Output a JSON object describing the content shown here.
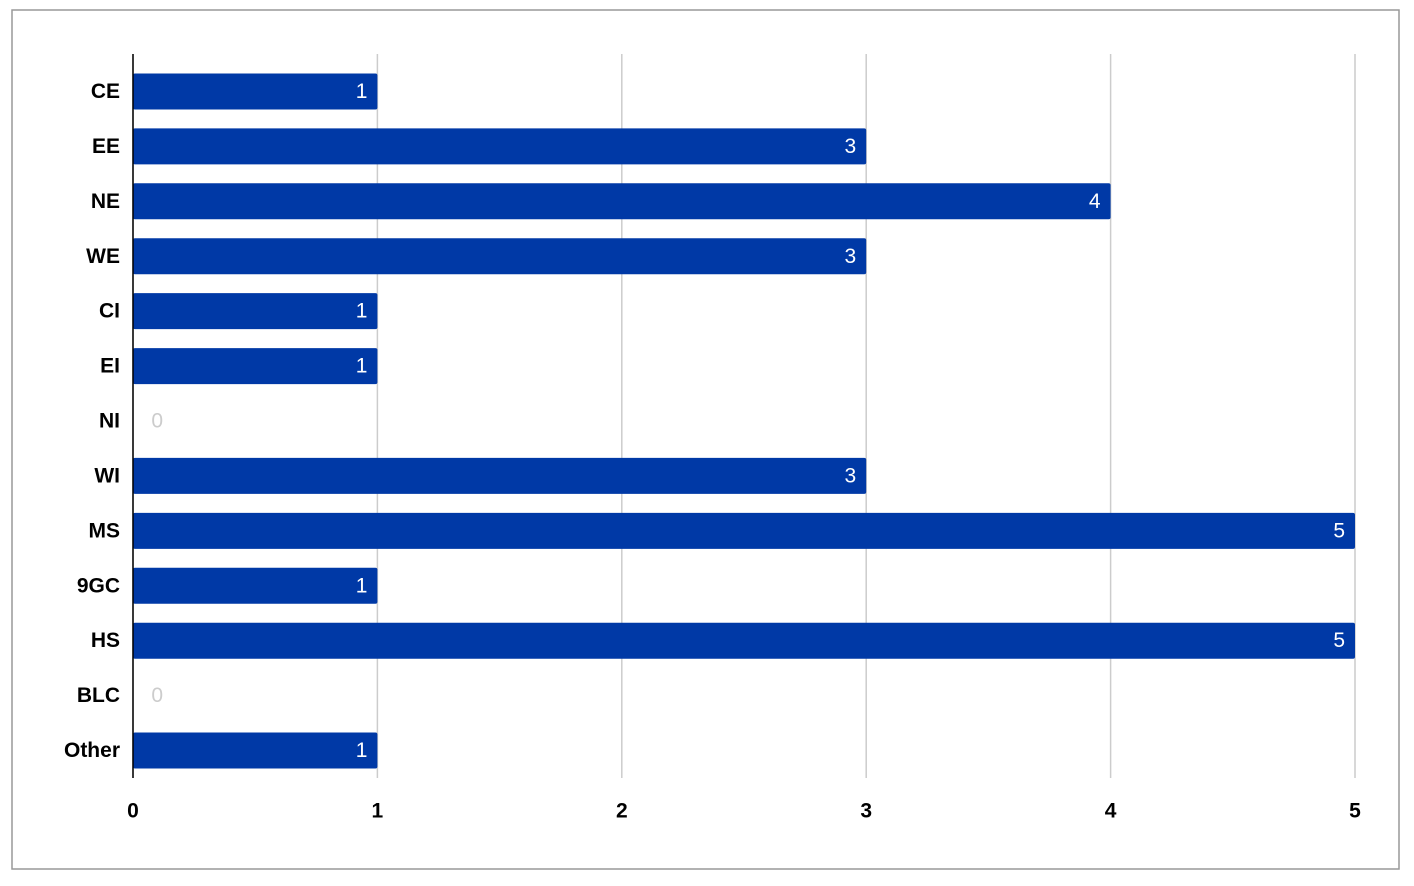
{
  "chart_data": {
    "type": "bar",
    "orientation": "horizontal",
    "categories": [
      "CE",
      "EE",
      "NE",
      "WE",
      "CI",
      "EI",
      "NI",
      "WI",
      "MS",
      "9GC",
      "HS",
      "BLC",
      "Other"
    ],
    "values": [
      1,
      3,
      4,
      3,
      1,
      1,
      0,
      3,
      5,
      1,
      5,
      0,
      1
    ],
    "color": "#0039a6",
    "xlim": [
      0,
      5
    ],
    "xticks": [
      0,
      1,
      2,
      3,
      4,
      5
    ],
    "grid": true
  }
}
